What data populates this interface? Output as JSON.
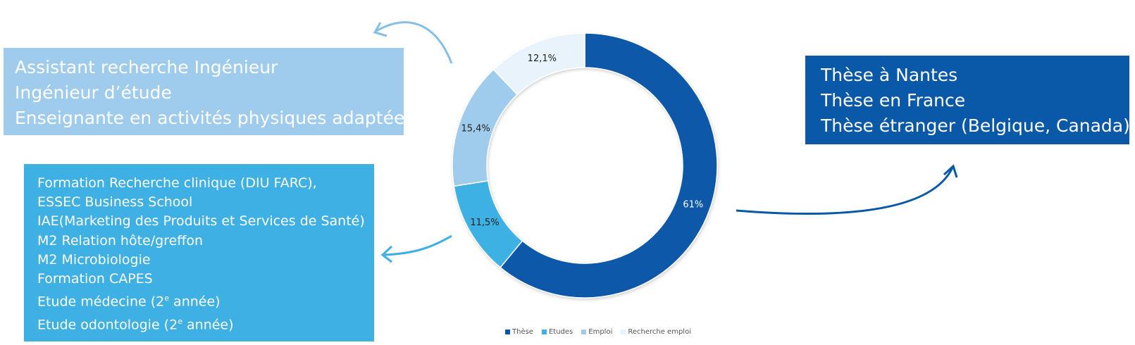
{
  "employment_box": {
    "lines": [
      "Assistant recherche Ingénieur",
      "Ingénieur d’étude",
      "Enseignante en activités physiques adaptées"
    ],
    "color": "#9fcbec"
  },
  "studies_box": {
    "lines": [
      "Formation Recherche clinique (DIU FARC),",
      "ESSEC Business School",
      "IAE(Marketing des Produits et Services de Santé)",
      "M2 Relation hôte/greffon",
      "M2 Microbiologie",
      "Formation CAPES",
      "Etude médecine (2",
      "Etude odontologie (2"
    ],
    "ordinal_suffix": "e",
    "year_word": " année)",
    "color": "#3eb0e4"
  },
  "thesis_box": {
    "lines": [
      "Thèse à Nantes",
      "Thèse en France",
      "Thèse étranger (Belgique, Canada)"
    ],
    "color": "#0a58a8"
  },
  "chart_data": {
    "type": "pie",
    "variant": "donut",
    "title": "",
    "categories": [
      "Thèse",
      "Etudes",
      "Emploi",
      "Recherche emploi"
    ],
    "values": [
      61,
      11.5,
      15.4,
      12.1
    ],
    "labels": [
      "61%",
      "11,5%",
      "15,4%",
      "12,1%"
    ],
    "colors": [
      "#0a58a8",
      "#3eb0e4",
      "#9fcbec",
      "#e8f3fb"
    ],
    "start": "12 o'clock",
    "direction": "clockwise",
    "legend": "bottom"
  }
}
